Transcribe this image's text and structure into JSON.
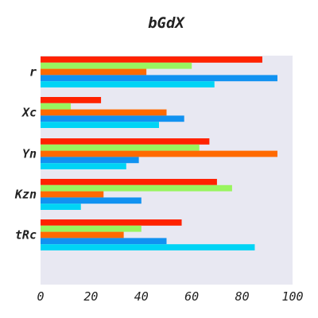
{
  "chart_data": {
    "type": "bar",
    "orientation": "horizontal",
    "title": "bGdX",
    "categories": [
      "r",
      "Xc",
      "Yn",
      "Kzn",
      "tRc"
    ],
    "series": [
      {
        "color": "#ff2200",
        "values": [
          88,
          24,
          67,
          70,
          56
        ]
      },
      {
        "color": "#99f55f",
        "values": [
          60,
          12,
          63,
          76,
          40
        ]
      },
      {
        "color": "#ff6a00",
        "values": [
          42,
          50,
          94,
          25,
          33
        ]
      },
      {
        "color": "#1192f1",
        "values": [
          94,
          57,
          39,
          40,
          50
        ]
      },
      {
        "color": "#00d4f5",
        "values": [
          69,
          47,
          34,
          16,
          85
        ]
      }
    ],
    "xlim": [
      0,
      100
    ],
    "x_ticks": [
      "0",
      "20",
      "40",
      "60",
      "80",
      "100"
    ],
    "xlabel": "",
    "ylabel": "",
    "grid": false,
    "legend": "none",
    "plot_background": "#e8e8f2"
  }
}
